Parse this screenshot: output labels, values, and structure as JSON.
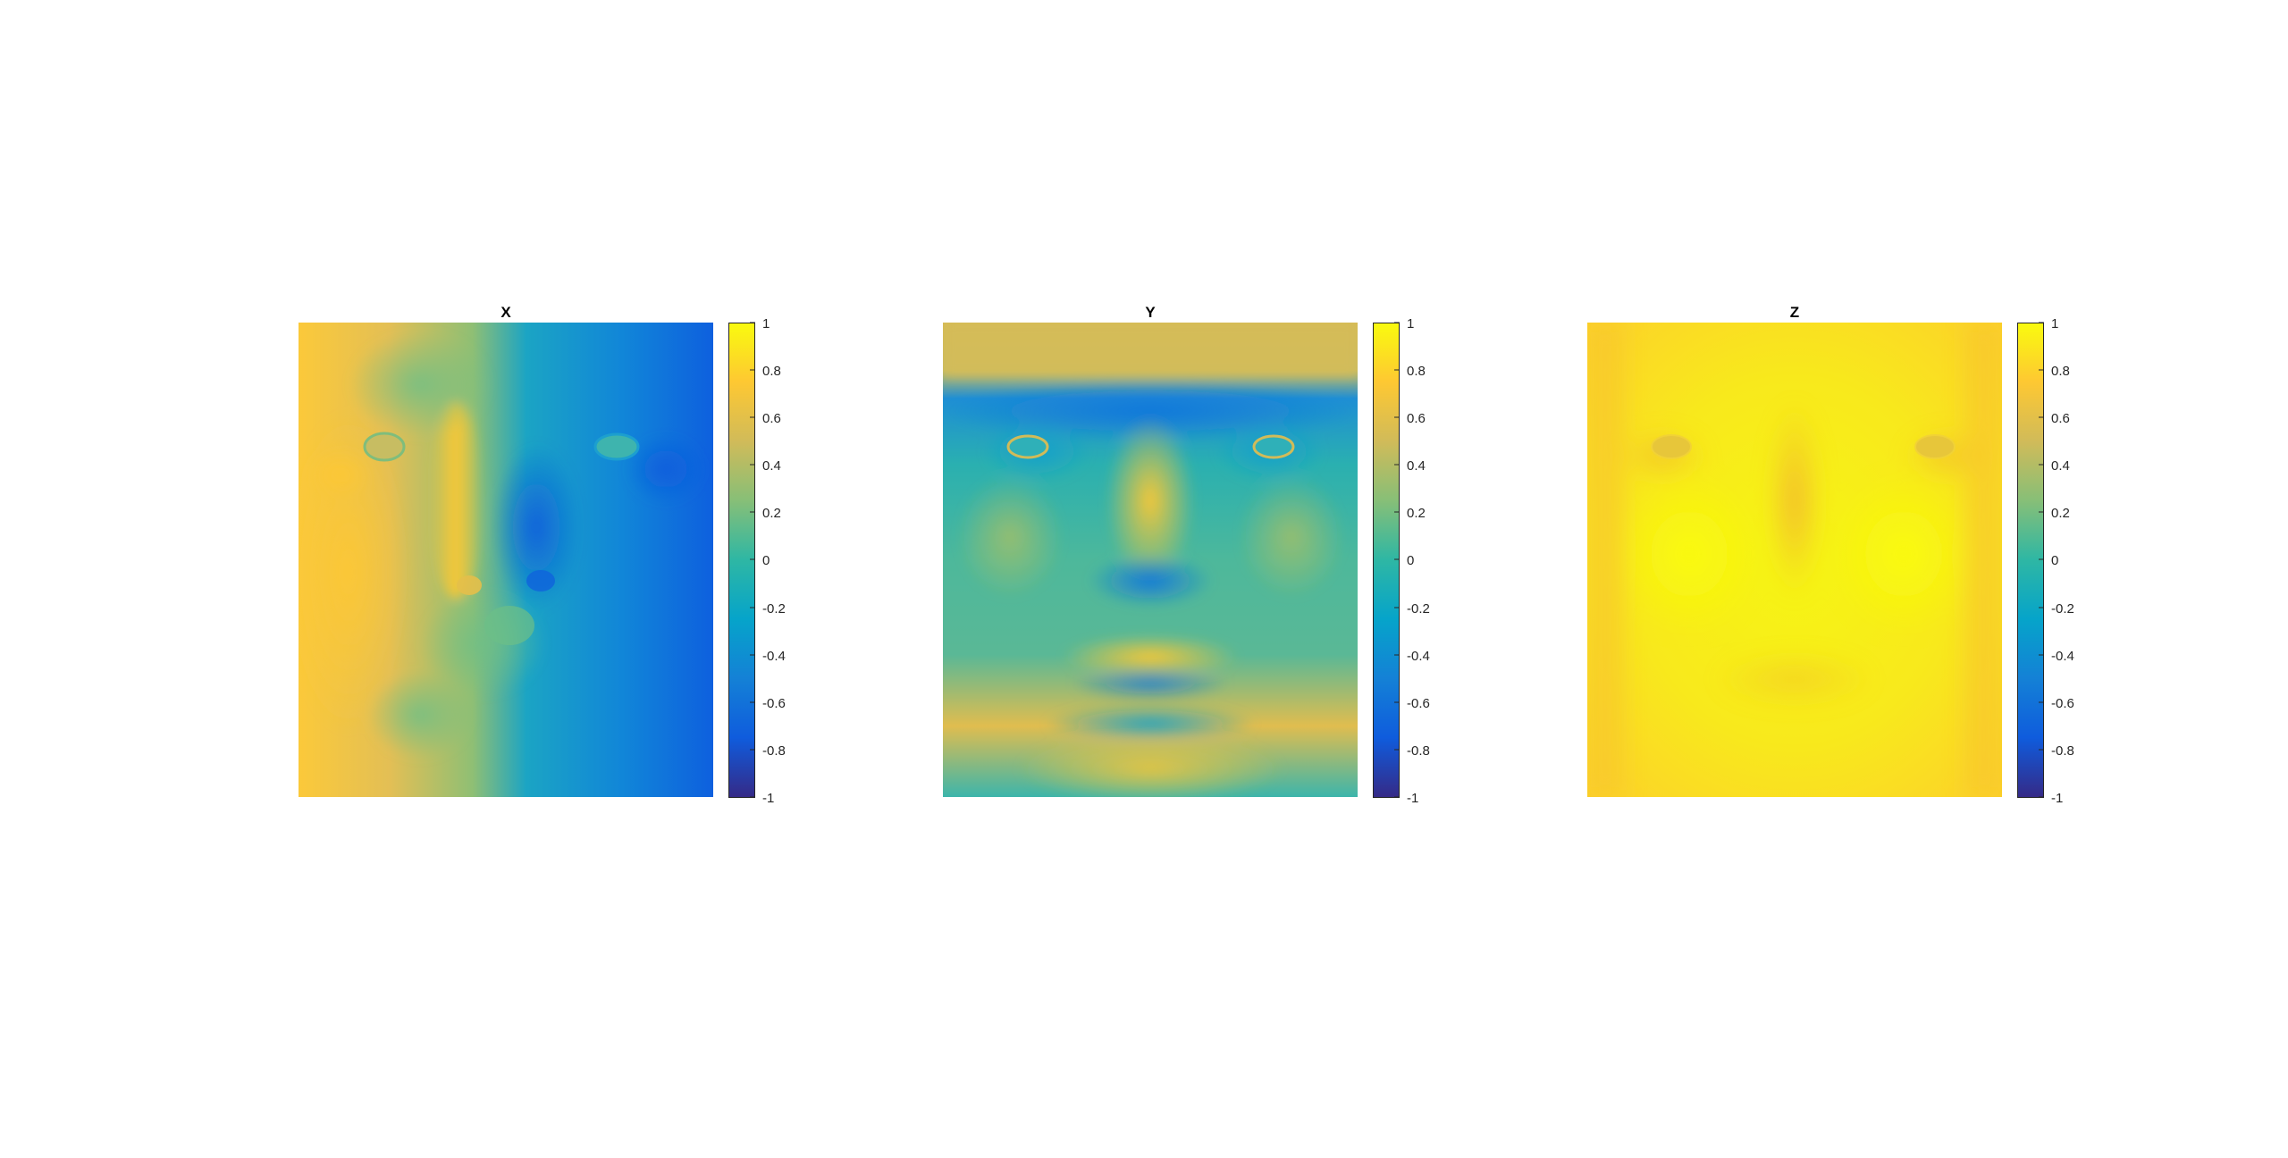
{
  "colors": {
    "colormap": "parula",
    "colormap_stops": [
      "#352a87",
      "#0f5cdd",
      "#1481d6",
      "#06a4ca",
      "#2eb7a4",
      "#87bf77",
      "#d1bb59",
      "#fec832",
      "#f9fb0e"
    ]
  },
  "chart_data": [
    {
      "type": "heatmap",
      "title": "X",
      "content": "face surface-normal x-component",
      "colorbar": {
        "limits": [
          -1,
          1
        ],
        "ticks": [
          "1",
          "0.8",
          "0.6",
          "0.4",
          "0.2",
          "0",
          "-0.2",
          "-0.4",
          "-0.6",
          "-0.8",
          "-1"
        ]
      },
      "grid": false
    },
    {
      "type": "heatmap",
      "title": "Y",
      "content": "face surface-normal y-component",
      "colorbar": {
        "limits": [
          -1,
          1
        ],
        "ticks": [
          "1",
          "0.8",
          "0.6",
          "0.4",
          "0.2",
          "0",
          "-0.2",
          "-0.4",
          "-0.6",
          "-0.8",
          "-1"
        ]
      },
      "grid": false
    },
    {
      "type": "heatmap",
      "title": "Z",
      "content": "face surface-normal z-component",
      "colorbar": {
        "limits": [
          -1,
          1
        ],
        "ticks": [
          "1",
          "0.8",
          "0.6",
          "0.4",
          "0.2",
          "0",
          "-0.2",
          "-0.4",
          "-0.6",
          "-0.8",
          "-1"
        ]
      },
      "grid": false
    }
  ]
}
